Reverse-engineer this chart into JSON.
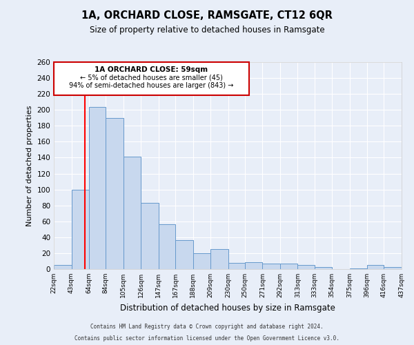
{
  "title": "1A, ORCHARD CLOSE, RAMSGATE, CT12 6QR",
  "subtitle": "Size of property relative to detached houses in Ramsgate",
  "xlabel": "Distribution of detached houses by size in Ramsgate",
  "ylabel": "Number of detached properties",
  "bar_color": "#c8d8ee",
  "bar_edge_color": "#6699cc",
  "background_color": "#e8eef8",
  "grid_color": "#ffffff",
  "fig_background_color": "#e8eef8",
  "red_line_x": 59,
  "annotation_title": "1A ORCHARD CLOSE: 59sqm",
  "annotation_line1": "← 5% of detached houses are smaller (45)",
  "annotation_line2": "94% of semi-detached houses are larger (843) →",
  "annotation_box_color": "#ffffff",
  "annotation_box_edge": "#cc0000",
  "footer_line1": "Contains HM Land Registry data © Crown copyright and database right 2024.",
  "footer_line2": "Contains public sector information licensed under the Open Government Licence v3.0.",
  "bin_edges": [
    22,
    43,
    64,
    84,
    105,
    126,
    147,
    167,
    188,
    209,
    230,
    250,
    271,
    292,
    313,
    333,
    354,
    375,
    396,
    416,
    437
  ],
  "bar_heights": [
    5,
    100,
    204,
    190,
    141,
    83,
    56,
    36,
    20,
    25,
    8,
    9,
    7,
    7,
    5,
    3,
    0,
    1,
    5,
    3
  ],
  "ylim": [
    0,
    260
  ],
  "yticks": [
    0,
    20,
    40,
    60,
    80,
    100,
    120,
    140,
    160,
    180,
    200,
    220,
    240,
    260
  ]
}
